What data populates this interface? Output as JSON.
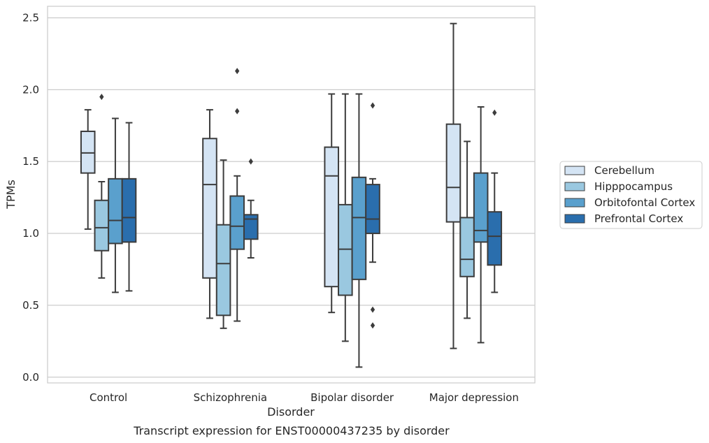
{
  "chart_data": {
    "type": "box",
    "title": "",
    "caption": "Transcript expression for ENST00000437235 by disorder",
    "xlabel": "Disorder",
    "ylabel": "TPMs",
    "ylim": [
      -0.04,
      2.58
    ],
    "yticks": [
      "0.0",
      "0.5",
      "1.0",
      "1.5",
      "2.0",
      "2.5"
    ],
    "grid": true,
    "legend_position": "right",
    "categories": [
      "Control",
      "Schizophrenia",
      "Bipolar disorder",
      "Major depression"
    ],
    "series": [
      {
        "name": "Cerebellum",
        "color": "#d4e4f4",
        "boxes": [
          {
            "whisker_low": 1.03,
            "q1": 1.42,
            "median": 1.56,
            "q3": 1.71,
            "whisker_high": 1.86,
            "outliers": []
          },
          {
            "whisker_low": 0.41,
            "q1": 0.69,
            "median": 1.34,
            "q3": 1.66,
            "whisker_high": 1.86,
            "outliers": []
          },
          {
            "whisker_low": 0.45,
            "q1": 0.63,
            "median": 1.4,
            "q3": 1.6,
            "whisker_high": 1.97,
            "outliers": []
          },
          {
            "whisker_low": 0.2,
            "q1": 1.08,
            "median": 1.32,
            "q3": 1.76,
            "whisker_high": 2.46,
            "outliers": []
          }
        ]
      },
      {
        "name": "Hipppocampus",
        "color": "#9ac8e0",
        "boxes": [
          {
            "whisker_low": 0.69,
            "q1": 0.88,
            "median": 1.04,
            "q3": 1.23,
            "whisker_high": 1.36,
            "outliers": [
              1.95
            ]
          },
          {
            "whisker_low": 0.34,
            "q1": 0.43,
            "median": 0.79,
            "q3": 1.06,
            "whisker_high": 1.51,
            "outliers": []
          },
          {
            "whisker_low": 0.25,
            "q1": 0.57,
            "median": 0.89,
            "q3": 1.2,
            "whisker_high": 1.97,
            "outliers": []
          },
          {
            "whisker_low": 0.41,
            "q1": 0.7,
            "median": 0.82,
            "q3": 1.11,
            "whisker_high": 1.64,
            "outliers": []
          }
        ]
      },
      {
        "name": "Orbitofontal Cortex",
        "color": "#5aa0cd",
        "boxes": [
          {
            "whisker_low": 0.59,
            "q1": 0.93,
            "median": 1.09,
            "q3": 1.38,
            "whisker_high": 1.8,
            "outliers": []
          },
          {
            "whisker_low": 0.39,
            "q1": 0.89,
            "median": 1.05,
            "q3": 1.26,
            "whisker_high": 1.4,
            "outliers": [
              1.85,
              2.13
            ]
          },
          {
            "whisker_low": 0.07,
            "q1": 0.68,
            "median": 1.11,
            "q3": 1.39,
            "whisker_high": 1.97,
            "outliers": []
          },
          {
            "whisker_low": 0.24,
            "q1": 0.94,
            "median": 1.02,
            "q3": 1.42,
            "whisker_high": 1.88,
            "outliers": []
          }
        ]
      },
      {
        "name": "Prefrontal Cortex",
        "color": "#2a6ead",
        "boxes": [
          {
            "whisker_low": 0.6,
            "q1": 0.94,
            "median": 1.11,
            "q3": 1.38,
            "whisker_high": 1.77,
            "outliers": []
          },
          {
            "whisker_low": 0.83,
            "q1": 0.96,
            "median": 1.1,
            "q3": 1.13,
            "whisker_high": 1.23,
            "outliers": [
              1.5
            ]
          },
          {
            "whisker_low": 0.8,
            "q1": 1.0,
            "median": 1.1,
            "q3": 1.34,
            "whisker_high": 1.38,
            "outliers": [
              1.89,
              0.47,
              0.36
            ]
          },
          {
            "whisker_low": 0.59,
            "q1": 0.78,
            "median": 0.98,
            "q3": 1.15,
            "whisker_high": 1.42,
            "outliers": [
              1.84
            ]
          }
        ]
      }
    ]
  }
}
